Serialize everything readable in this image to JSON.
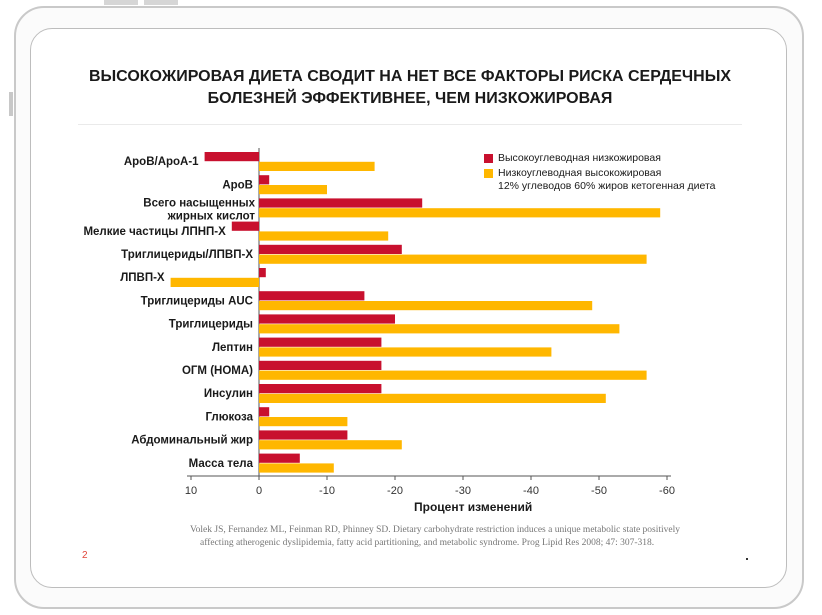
{
  "slide": {
    "title_line1": "ВЫСОКОЖИРОВАЯ ДИЕТА СВОДИТ НА НЕТ ВСЕ ФАКТОРЫ РИСКА СЕРДЕЧНЫХ",
    "title_line2": "БОЛЕЗНЕЙ ЭФФЕКТИВНЕЕ, ЧЕМ НИЗКОЖИРОВАЯ",
    "citation_line1": "Volek JS, Fernandez ML, Feinman RD, Phinney SD. Dietary carbohydrate restriction induces a unique metabolic state positively",
    "citation_line2": "affecting atherogenic dyslipidemia, fatty acid partitioning, and metabolic syndrome. Prog Lipid Res 2008; 47: 307-318.",
    "page_number": "2"
  },
  "legend": {
    "item1": "Высокоуглеводная низкожировая",
    "item2_line1": "Низкоуглеводная высокожировая",
    "item2_line2": "12% углеводов 60% жиров кетогенная диета"
  },
  "colors": {
    "red": "#c8102e",
    "orange": "#ffb700",
    "axis": "#555555"
  },
  "chart_data": {
    "type": "bar",
    "orientation": "horizontal",
    "title": "ВЫСОКОЖИРОВАЯ ДИЕТА СВОДИТ НА НЕТ ВСЕ ФАКТОРЫ РИСКА СЕРДЕЧНЫХ БОЛЕЗНЕЙ ЭФФЕКТИВНЕЕ, ЧЕМ НИЗКОЖИРОВАЯ",
    "xlabel": "Процент изменений",
    "xlim": [
      10,
      -60
    ],
    "xticks": [
      10,
      0,
      -10,
      -20,
      -30,
      -40,
      -50,
      -60
    ],
    "xtick_labels": [
      "10",
      "0",
      "-10",
      "-20",
      "-30",
      "-40",
      "-50",
      "-60"
    ],
    "categories": [
      {
        "label": "ApoB/ApoA-1"
      },
      {
        "label": "ApoB"
      },
      {
        "label": "Всего насыщенных",
        "label2": "жирных кислот"
      },
      {
        "label": "Мелкие частицы ЛПНП-Х"
      },
      {
        "label": "Триглицериды/ЛПВП-Х"
      },
      {
        "label": "ЛПВП-Х"
      },
      {
        "label": "Триглицериды AUC"
      },
      {
        "label": "Триглицериды"
      },
      {
        "label": "Лептин"
      },
      {
        "label": "ОГМ (HOMA)"
      },
      {
        "label": "Инсулин"
      },
      {
        "label": "Глюкоза"
      },
      {
        "label": "Абдоминальный жир"
      },
      {
        "label": "Масса тела"
      }
    ],
    "series": [
      {
        "name": "Высокоуглеводная низкожировая",
        "color": "#c8102e",
        "values": [
          8,
          -1.5,
          -24,
          4,
          -21,
          -1,
          -15.5,
          -20,
          -18,
          -18,
          -18,
          -1.5,
          -13,
          -6
        ]
      },
      {
        "name": "Низкоуглеводная высокожировая 12% углеводов 60% жиров кетогенная диета",
        "color": "#ffb700",
        "values": [
          -17,
          -10,
          -59,
          -19,
          -57,
          13,
          -49,
          -53,
          -43,
          -57,
          -51,
          -13,
          -21,
          -11
        ]
      }
    ],
    "grid": false,
    "legend_position": "top-right"
  }
}
